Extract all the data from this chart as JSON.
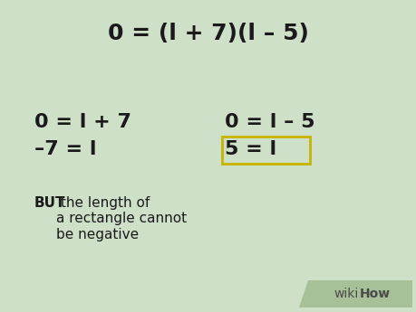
{
  "bg_color": "#cfe0c8",
  "title_text": "0 = (l + 7)(l – 5)",
  "title_fontsize": 18,
  "left_line1": "0 = l + 7",
  "left_line2": "–7 = l",
  "right_line1": "0 = l – 5",
  "right_line2": "5 = l",
  "bottom_bold": "BUT",
  "bottom_normal": " the length of\na rectangle cannot\nbe negative",
  "text_color": "#1a1a1a",
  "box_color": "#c8b400",
  "math_fontsize": 16,
  "note_fontsize": 11,
  "wikihow_normal": "wiki",
  "wikihow_bold": "How",
  "wikihow_text_color": "#4a4a4a",
  "wikihow_bg": "#a8c098"
}
